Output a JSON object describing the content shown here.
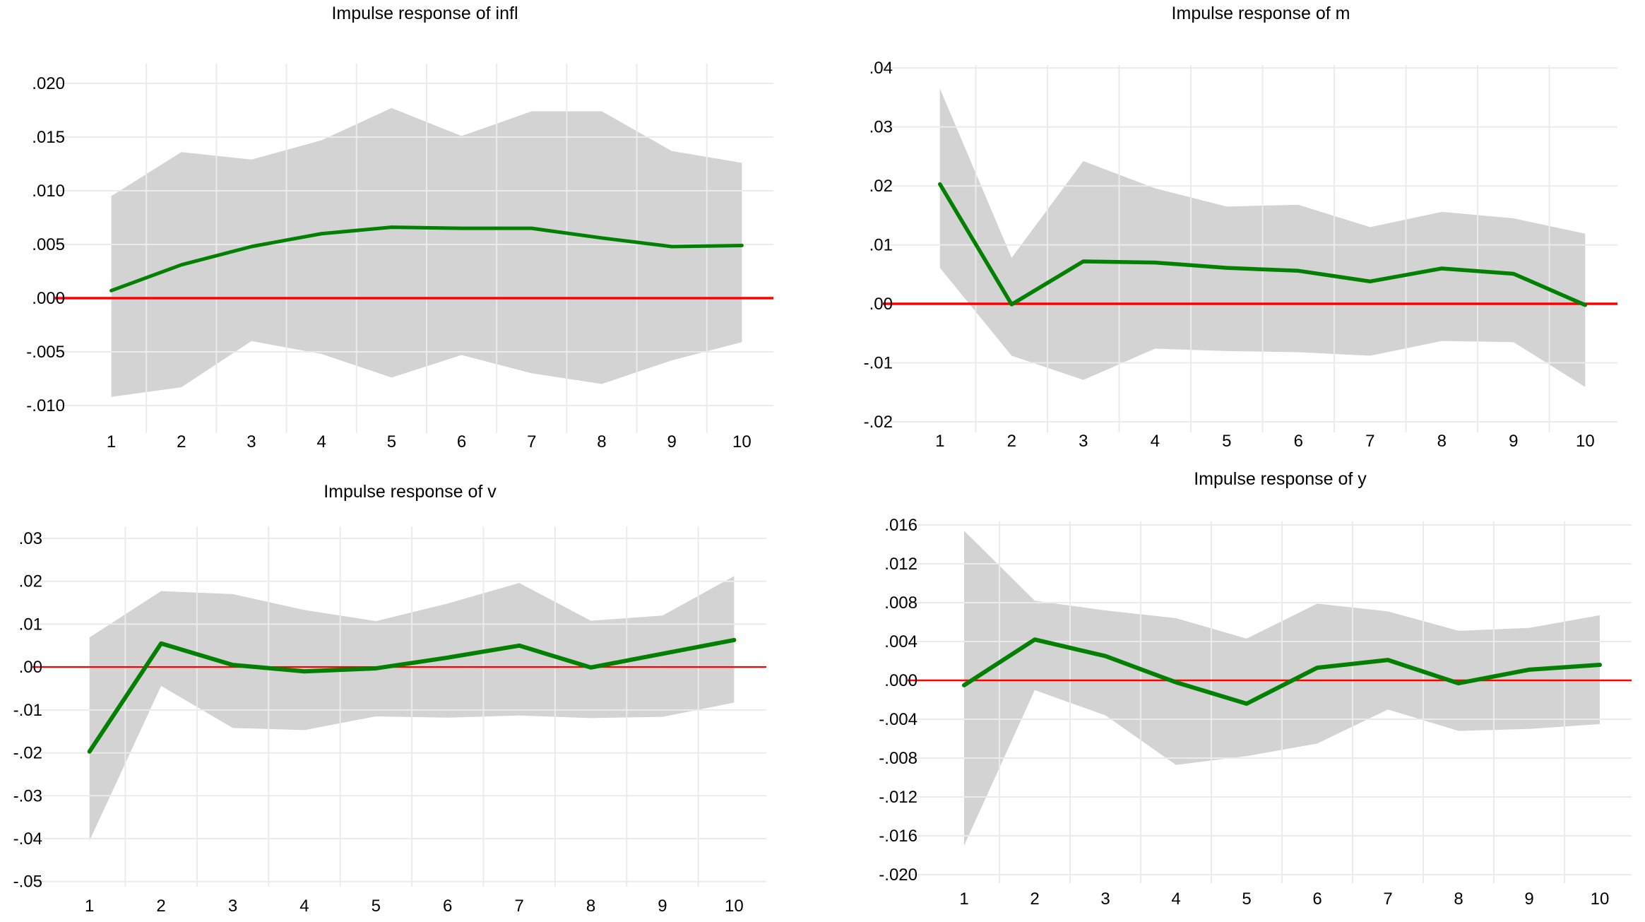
{
  "figure": {
    "description": "2x2 grid of VAR impulse response function charts with 95% confidence bands",
    "background": "#ffffff"
  },
  "colors": {
    "response_line": "#018001",
    "zero_line": "#fe0000",
    "confidence_band": "#d3d3d3",
    "gridline": "#ebebeb",
    "text": "#000000"
  },
  "chart_data": [
    {
      "type": "line",
      "title": "Impulse response of infl",
      "x": [
        1,
        2,
        3,
        4,
        5,
        6,
        7,
        8,
        9,
        10
      ],
      "x_ticks": [
        "1",
        "2",
        "3",
        "4",
        "5",
        "6",
        "7",
        "8",
        "9",
        "10"
      ],
      "series": [
        {
          "name": "response",
          "values": [
            0.0007,
            0.0031,
            0.0048,
            0.006,
            0.0066,
            0.0065,
            0.0065,
            0.0056,
            0.0048,
            0.0049
          ]
        },
        {
          "name": "ci_upper",
          "values": [
            0.0095,
            0.0136,
            0.0129,
            0.0147,
            0.0177,
            0.0151,
            0.0174,
            0.0174,
            0.0137,
            0.0126
          ]
        },
        {
          "name": "ci_lower",
          "values": [
            -0.0092,
            -0.0083,
            -0.004,
            -0.0052,
            -0.0074,
            -0.0053,
            -0.007,
            -0.008,
            -0.0058,
            -0.0041
          ]
        }
      ],
      "zero_line": 0,
      "y_tick_labels": [
        ".020",
        ".015",
        ".010",
        ".005",
        ".000",
        "-.005",
        "-.010"
      ],
      "y_tick_values": [
        0.02,
        0.015,
        0.01,
        0.005,
        0.0,
        -0.005,
        -0.01
      ],
      "ylim": [
        -0.01,
        0.02
      ],
      "grid": true,
      "legend": "none"
    },
    {
      "type": "line",
      "title": "Impulse response of m",
      "x": [
        1,
        2,
        3,
        4,
        5,
        6,
        7,
        8,
        9,
        10
      ],
      "x_ticks": [
        "1",
        "2",
        "3",
        "4",
        "5",
        "6",
        "7",
        "8",
        "9",
        "10"
      ],
      "series": [
        {
          "name": "response",
          "values": [
            0.0203,
            -0.0001,
            0.0072,
            0.007,
            0.0061,
            0.0056,
            0.0038,
            0.006,
            0.0051,
            -0.0002
          ]
        },
        {
          "name": "ci_upper",
          "values": [
            0.0365,
            0.0078,
            0.0242,
            0.0196,
            0.0165,
            0.0168,
            0.013,
            0.0156,
            0.0145,
            0.0119
          ]
        },
        {
          "name": "ci_lower",
          "values": [
            0.0061,
            -0.0088,
            -0.0129,
            -0.0076,
            -0.008,
            -0.0082,
            -0.0088,
            -0.0063,
            -0.0065,
            -0.0141
          ]
        }
      ],
      "zero_line": 0,
      "y_tick_labels": [
        ".04",
        ".03",
        ".02",
        ".01",
        ".00",
        "-.01",
        "-.02"
      ],
      "y_tick_values": [
        0.04,
        0.03,
        0.02,
        0.01,
        0.0,
        -0.01,
        -0.02
      ],
      "ylim": [
        -0.02,
        0.04
      ],
      "grid": true,
      "legend": "none"
    },
    {
      "type": "line",
      "title": "Impulse response of v",
      "x": [
        1,
        2,
        3,
        4,
        5,
        6,
        7,
        8,
        9,
        10
      ],
      "x_ticks": [
        "1",
        "2",
        "3",
        "4",
        "5",
        "6",
        "7",
        "8",
        "9",
        "10"
      ],
      "series": [
        {
          "name": "response",
          "values": [
            -0.0197,
            0.0055,
            0.0005,
            -0.001,
            -0.0003,
            0.0022,
            0.005,
            -0.0001,
            0.0031,
            0.0063
          ]
        },
        {
          "name": "ci_upper",
          "values": [
            0.0069,
            0.0177,
            0.017,
            0.0133,
            0.0107,
            0.0148,
            0.0196,
            0.0108,
            0.012,
            0.0212
          ]
        },
        {
          "name": "ci_lower",
          "values": [
            -0.0405,
            -0.0044,
            -0.0142,
            -0.0147,
            -0.0115,
            -0.0118,
            -0.0113,
            -0.0119,
            -0.0116,
            -0.0083
          ]
        }
      ],
      "zero_line": 0,
      "y_tick_labels": [
        ".03",
        ".02",
        ".01",
        ".00",
        "-.01",
        "-.02",
        "-.03",
        "-.04",
        "-.05"
      ],
      "y_tick_values": [
        0.03,
        0.02,
        0.01,
        0.0,
        -0.01,
        -0.02,
        -0.03,
        -0.04,
        -0.05
      ],
      "ylim": [
        -0.05,
        0.03
      ],
      "grid": true,
      "legend": "none"
    },
    {
      "type": "line",
      "title": "Impulse response of y",
      "x": [
        1,
        2,
        3,
        4,
        5,
        6,
        7,
        8,
        9,
        10
      ],
      "x_ticks": [
        "1",
        "2",
        "3",
        "4",
        "5",
        "6",
        "7",
        "8",
        "9",
        "10"
      ],
      "series": [
        {
          "name": "response",
          "values": [
            -0.0005,
            0.0042,
            0.0025,
            -0.0002,
            -0.0024,
            0.0013,
            0.0021,
            -0.0003,
            0.0011,
            0.0016
          ]
        },
        {
          "name": "ci_upper",
          "values": [
            0.0154,
            0.0082,
            0.0072,
            0.0064,
            0.0043,
            0.0079,
            0.0071,
            0.0051,
            0.0054,
            0.0067
          ]
        },
        {
          "name": "ci_lower",
          "values": [
            -0.017,
            -0.001,
            -0.0036,
            -0.0087,
            -0.0078,
            -0.0065,
            -0.003,
            -0.0052,
            -0.005,
            -0.0045
          ]
        }
      ],
      "zero_line": 0,
      "y_tick_labels": [
        ".016",
        ".012",
        ".008",
        ".004",
        ".000",
        "-.004",
        "-.008",
        "-.012",
        "-.016",
        "-.020"
      ],
      "y_tick_values": [
        0.016,
        0.012,
        0.008,
        0.004,
        0.0,
        -0.004,
        -0.008,
        -0.012,
        -0.016,
        -0.02
      ],
      "ylim": [
        -0.02,
        0.016
      ],
      "grid": true,
      "legend": "none"
    }
  ]
}
